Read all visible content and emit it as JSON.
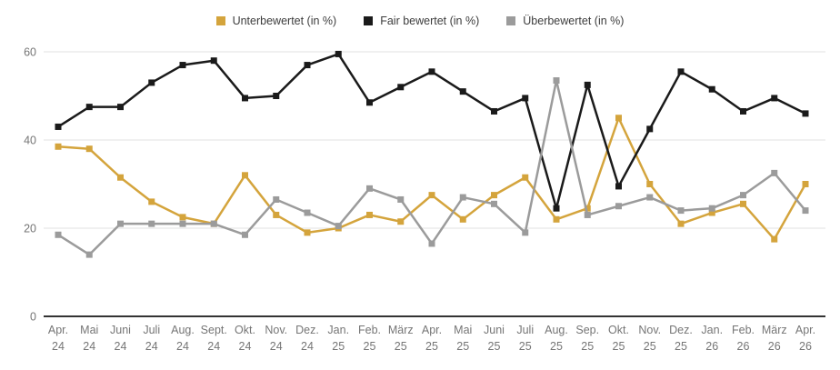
{
  "legend": {
    "items": [
      {
        "label": "Unterbewertet (in %)",
        "color": "#D4A43C"
      },
      {
        "label": "Fair bewertet (in %)",
        "color": "#1A1A1A"
      },
      {
        "label": "Überbewertet (in %)",
        "color": "#9B9B9B"
      }
    ]
  },
  "chart_data": {
    "type": "line",
    "title": "",
    "xlabel": "",
    "ylabel": "",
    "ylim": [
      0,
      60
    ],
    "yticks": [
      0,
      20,
      40,
      60
    ],
    "grid": true,
    "legend_position": "top",
    "marker": "square",
    "categories": [
      "Apr. 24",
      "Mai 24",
      "Juni 24",
      "Juli 24",
      "Aug. 24",
      "Sept. 24",
      "Okt. 24",
      "Nov. 24",
      "Dez. 24",
      "Jan. 25",
      "Feb. 25",
      "März 25",
      "Apr. 25",
      "Mai 25",
      "Juni 25",
      "Juli 25",
      "Aug. 25",
      "Sep. 25",
      "Okt. 25",
      "Nov. 25",
      "Dez. 25",
      "Jan. 26",
      "Feb. 26",
      "März 26",
      "Apr. 26"
    ],
    "series": [
      {
        "name": "Unterbewertet (in %)",
        "color": "#D4A43C",
        "values": [
          38.5,
          38,
          31.5,
          26,
          22.5,
          21,
          32,
          23,
          19,
          20,
          23,
          21.5,
          27.5,
          22,
          27.5,
          31.5,
          22,
          24.5,
          45,
          30,
          21,
          23.5,
          25.5,
          17.5,
          30
        ]
      },
      {
        "name": "Fair bewertet (in %)",
        "color": "#1A1A1A",
        "values": [
          43,
          47.5,
          47.5,
          53,
          57,
          58,
          49.5,
          50,
          57,
          59.5,
          48.5,
          52,
          55.5,
          51,
          46.5,
          49.5,
          24.5,
          52.5,
          29.5,
          42.5,
          55.5,
          51.5,
          46.5,
          49.5,
          46
        ]
      },
      {
        "name": "Überbewertet (in %)",
        "color": "#9B9B9B",
        "values": [
          18.5,
          14,
          21,
          21,
          21,
          21,
          18.5,
          26.5,
          23.5,
          20.5,
          29,
          26.5,
          16.5,
          27,
          25.5,
          19,
          53.5,
          23,
          25,
          27,
          24,
          24.5,
          27.5,
          32.5,
          24
        ]
      }
    ]
  },
  "colors": {
    "background": "#ffffff",
    "grid_line": "#e0e0e0",
    "axis_line": "#333333",
    "axis_label": "#757575",
    "legend_text": "#3c3c3c"
  }
}
